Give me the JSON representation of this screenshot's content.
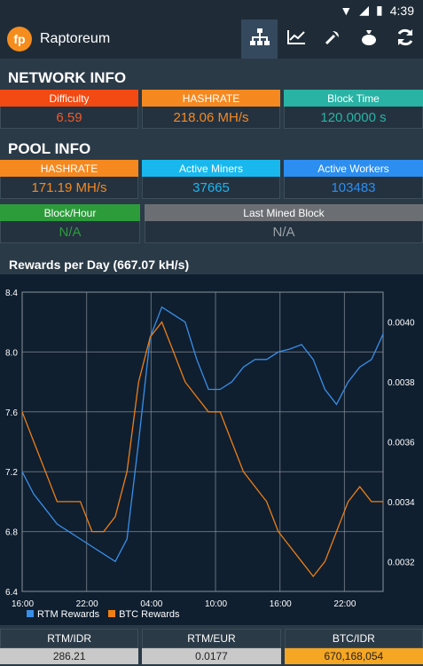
{
  "statusbar": {
    "time": "4:39"
  },
  "app": {
    "title": "Raptoreum",
    "logo": "fp"
  },
  "tabs": [
    {
      "name": "network",
      "icon": "sitemap-icon",
      "active": true
    },
    {
      "name": "chart",
      "icon": "chart-icon"
    },
    {
      "name": "tools",
      "icon": "pickaxe-icon"
    },
    {
      "name": "money",
      "icon": "moneybag-icon"
    },
    {
      "name": "refresh",
      "icon": "refresh-icon"
    }
  ],
  "network": {
    "title": "NETWORK INFO",
    "difficulty": {
      "label": "Difficulty",
      "value": "6.59",
      "color": "#f24a12",
      "val_color": "#f05a28"
    },
    "hashrate": {
      "label": "HASHRATE",
      "value": "218.06 MH/s",
      "color": "#f5891f",
      "val_color": "#f5891f"
    },
    "blocktime": {
      "label": "Block Time",
      "value": "120.0000 s",
      "color": "#28b3a4",
      "val_color": "#28b3a4"
    }
  },
  "pool": {
    "title": "POOL INFO",
    "hashrate": {
      "label": "HASHRATE",
      "value": "171.19 MH/s",
      "color": "#f5891f",
      "val_color": "#f5891f"
    },
    "miners": {
      "label": "Active Miners",
      "value": "37665",
      "color": "#18b8ef",
      "val_color": "#1cb6f0"
    },
    "workers": {
      "label": "Active Workers",
      "value": "103483",
      "color": "#2b8ef0",
      "val_color": "#2b8ef0"
    },
    "blockhour": {
      "label": "Block/Hour",
      "value": "N/A",
      "color": "#2c9c3b",
      "val_color": "#2c9c3b"
    },
    "lastmined": {
      "label": "Last Mined Block",
      "value": "N/A",
      "color": "#6b6f73",
      "val_color": "#9aa0a5"
    }
  },
  "chart_title": "Rewards per Day (667.07 kH/s)",
  "chart_data": {
    "type": "line",
    "x_ticks": [
      "16:00",
      "22:00",
      "04:00",
      "10:00",
      "16:00",
      "22:00"
    ],
    "left_axis": {
      "ticks": [
        "6.4",
        "6.8",
        "7.2",
        "7.6",
        "8.0",
        "8.4"
      ],
      "range": [
        6.4,
        8.4
      ]
    },
    "right_axis": {
      "ticks": [
        "0.0032",
        "0.0034",
        "0.0036",
        "0.0038",
        "0.0040"
      ],
      "range": [
        0.0031,
        0.0041
      ]
    },
    "series": [
      {
        "name": "RTM Rewards",
        "color": "#3a8ee6",
        "axis": "left",
        "values": [
          7.2,
          7.05,
          6.95,
          6.85,
          6.8,
          6.75,
          6.7,
          6.65,
          6.6,
          6.75,
          7.4,
          8.1,
          8.3,
          8.25,
          8.2,
          7.95,
          7.75,
          7.75,
          7.8,
          7.9,
          7.95,
          7.95,
          8.0,
          8.02,
          8.05,
          7.95,
          7.75,
          7.65,
          7.8,
          7.9,
          7.95,
          8.12
        ]
      },
      {
        "name": "BTC Rewards",
        "color": "#f07f13",
        "axis": "right",
        "values": [
          0.0037,
          0.0036,
          0.0035,
          0.0034,
          0.0034,
          0.0034,
          0.0033,
          0.0033,
          0.00335,
          0.0035,
          0.0038,
          0.00395,
          0.004,
          0.0039,
          0.0038,
          0.00375,
          0.0037,
          0.0037,
          0.0036,
          0.0035,
          0.00345,
          0.0034,
          0.0033,
          0.00325,
          0.0032,
          0.00315,
          0.0032,
          0.0033,
          0.0034,
          0.00345,
          0.0034,
          0.0034
        ]
      }
    ]
  },
  "bottom": [
    {
      "label": "RTM/IDR",
      "value": "286.21"
    },
    {
      "label": "RTM/EUR",
      "value": "0.0177"
    },
    {
      "label": "BTC/IDR",
      "value": "670,168,054"
    }
  ]
}
